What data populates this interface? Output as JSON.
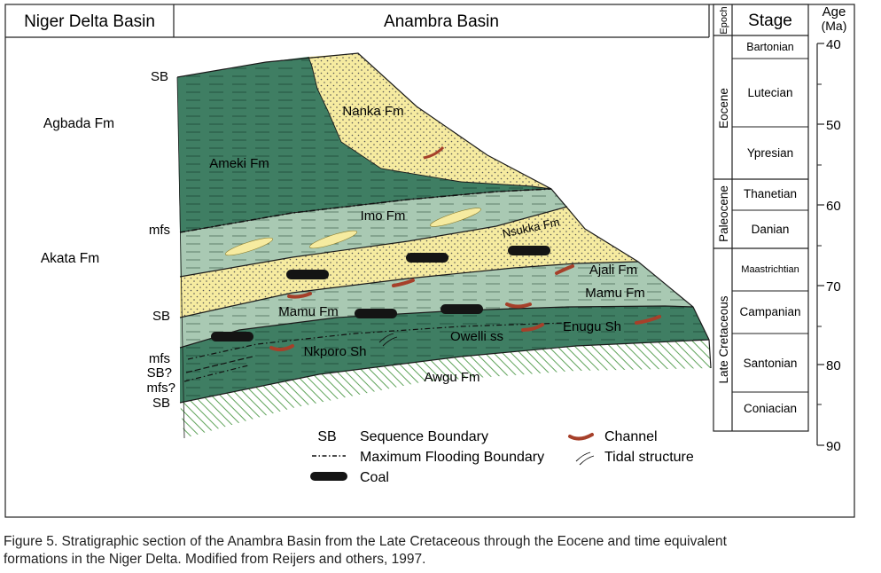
{
  "header": {
    "niger_delta": "Niger Delta Basin",
    "anambra": "Anambra Basin",
    "epoch": "Epoch",
    "stage": "Stage",
    "age": "Age",
    "age_unit": "(Ma)"
  },
  "niger_delta_formations": {
    "agbada": "Agbada Fm",
    "akata": "Akata Fm"
  },
  "boundary_labels": {
    "sb_top": "SB",
    "mfs_upper": "mfs",
    "sb_middle": "SB",
    "mfs_lower": "mfs",
    "sb_query": "SB?",
    "mfs_query": "mfs?",
    "sb_bottom": "SB"
  },
  "formations": {
    "nanka": "Nanka Fm",
    "ameki": "Ameki Fm",
    "imo": "Imo Fm",
    "nsukka": "Nsukka Fm",
    "ajali": "Ajali Fm",
    "mamu_right": "Mamu Fm",
    "mamu_left": "Mamu Fm",
    "owelli": "Owelli ss",
    "enugu": "Enugu Sh",
    "nkporo": "Nkporo Sh",
    "awgu": "Awgu Fm"
  },
  "legend": {
    "sb_symbol": "SB",
    "sb_text": "Sequence Boundary",
    "mfb_text": "Maximum Flooding Boundary",
    "coal_text": "Coal",
    "channel_text": "Channel",
    "tidal_text": "Tidal structure"
  },
  "epochs": [
    "Eocene",
    "Paleocene",
    "Late Cretaceous"
  ],
  "stages": [
    "Bartonian",
    "Lutecian",
    "Ypresian",
    "Thanetian",
    "Danian",
    "Maastrichtian",
    "Campanian",
    "Santonian",
    "Coniacian"
  ],
  "age_ticks": [
    "40",
    "50",
    "60",
    "70",
    "80",
    "90"
  ],
  "colors": {
    "dark_green": "#3f7e63",
    "light_green": "#a9c9b3",
    "sand_yellow": "#f6eba0",
    "channel_red": "#a6402a",
    "coal_black": "#141414",
    "hatch_green": "#5fa35a"
  },
  "caption": {
    "line1": "Figure 5.  Stratigraphic section of the Anambra Basin from the Late Cretaceous through the Eocene and time equivalent",
    "line2": "formations in the Niger Delta.  Modified from Reijers and others, 1997."
  }
}
